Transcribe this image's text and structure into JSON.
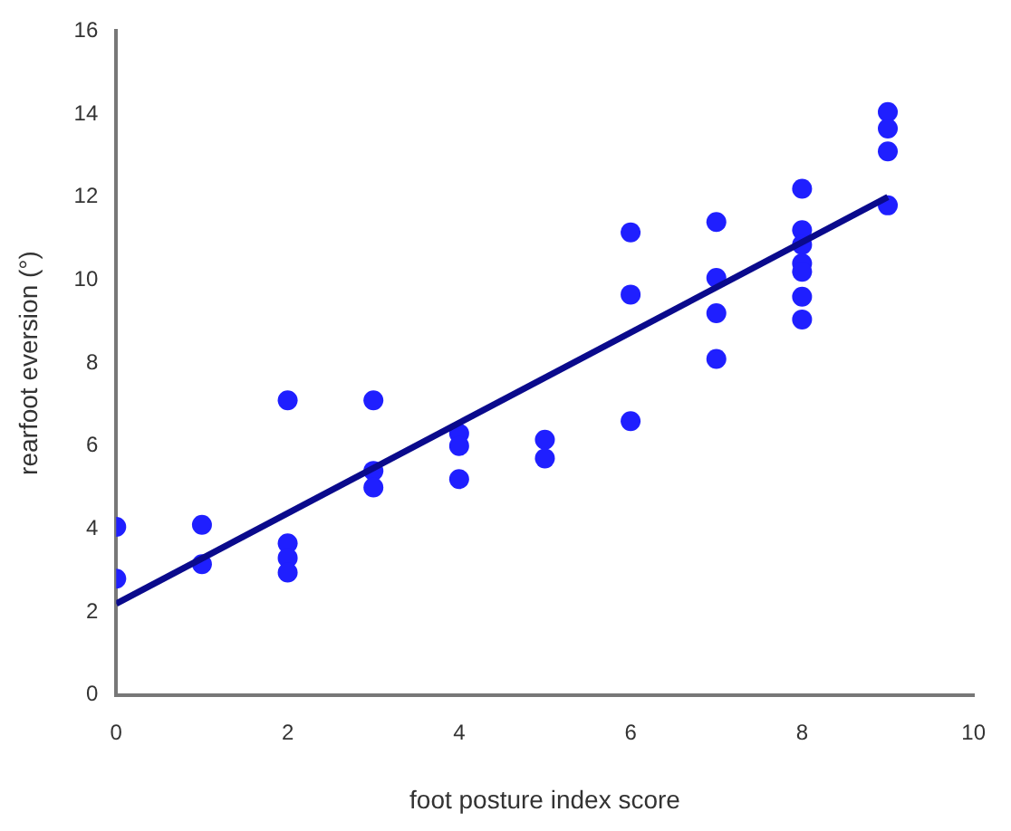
{
  "chart_data": {
    "type": "scatter",
    "xlabel": "foot posture index score",
    "ylabel": "rearfoot eversion (°)",
    "xlim": [
      0,
      10
    ],
    "xticks": [
      0,
      2,
      4,
      6,
      8,
      10
    ],
    "ylim": [
      0,
      16
    ],
    "yticks": [
      0,
      2,
      4,
      6,
      8,
      10,
      12,
      14,
      16
    ],
    "grid": false,
    "legend": false,
    "marker": "circle",
    "series": [
      {
        "color": "#1f1fff",
        "x": [
          0,
          0,
          1,
          1,
          2,
          2,
          2,
          2,
          3,
          3,
          3,
          4,
          4,
          4,
          5,
          5,
          6,
          6,
          6,
          7,
          7,
          7,
          7,
          8,
          8,
          8,
          8,
          8,
          8,
          8,
          9,
          9,
          9,
          9
        ],
        "values": [
          4.05,
          2.8,
          4.1,
          3.15,
          7.1,
          3.65,
          3.3,
          2.95,
          7.1,
          5.4,
          5.0,
          6.3,
          6.0,
          5.2,
          6.15,
          5.7,
          11.15,
          9.65,
          6.6,
          11.4,
          10.05,
          9.2,
          8.1,
          12.2,
          11.2,
          10.85,
          10.4,
          10.2,
          9.6,
          9.05,
          14.05,
          13.65,
          13.1,
          11.8
        ]
      },
      {
        "type": "line",
        "color": "#0a0a8c",
        "x": [
          0,
          9
        ],
        "values": [
          2.2,
          12.0
        ],
        "marker": "none",
        "line_style": "solid"
      }
    ]
  }
}
